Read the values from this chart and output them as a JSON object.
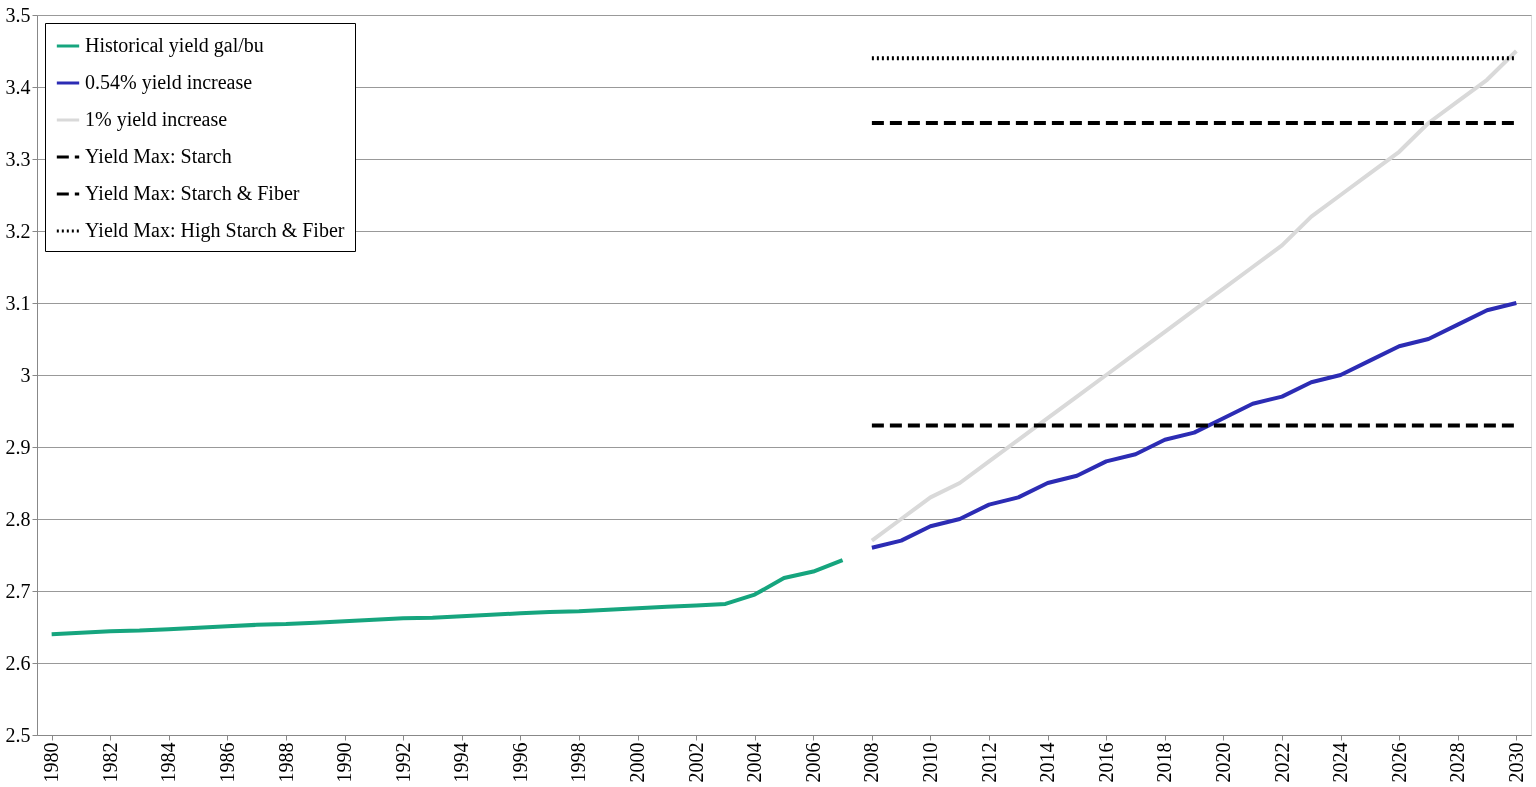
{
  "chart_data": {
    "type": "line",
    "x": [
      1980,
      1981,
      1982,
      1983,
      1984,
      1985,
      1986,
      1987,
      1988,
      1989,
      1990,
      1991,
      1992,
      1993,
      1994,
      1995,
      1996,
      1997,
      1998,
      1999,
      2000,
      2001,
      2002,
      2003,
      2004,
      2005,
      2006,
      2007
    ],
    "series": [
      {
        "name": "Historical yield gal/bu",
        "color": "#16a57e",
        "values": [
          2.64,
          2.642,
          2.644,
          2.645,
          2.647,
          2.649,
          2.651,
          2.653,
          2.654,
          2.656,
          2.658,
          2.66,
          2.662,
          2.663,
          2.665,
          2.667,
          2.669,
          2.671,
          2.672,
          2.674,
          2.676,
          2.678,
          2.68,
          2.682,
          2.695,
          2.718,
          2.727,
          2.743
        ]
      },
      {
        "name": "0.54% yield increase",
        "color": "#2c2cb4",
        "x": [
          2008,
          2009,
          2010,
          2011,
          2012,
          2013,
          2014,
          2015,
          2016,
          2017,
          2018,
          2019,
          2020,
          2021,
          2022,
          2023,
          2024,
          2025,
          2026,
          2027,
          2028,
          2029,
          2030
        ],
        "values": [
          2.76,
          2.77,
          2.79,
          2.8,
          2.82,
          2.83,
          2.85,
          2.86,
          2.88,
          2.89,
          2.91,
          2.92,
          2.94,
          2.96,
          2.97,
          2.99,
          3.0,
          3.02,
          3.04,
          3.05,
          3.07,
          3.09,
          3.1
        ]
      },
      {
        "name": "1% yield increase",
        "color": "#d9d9d9",
        "x": [
          2008,
          2009,
          2010,
          2011,
          2012,
          2013,
          2014,
          2015,
          2016,
          2017,
          2018,
          2019,
          2020,
          2021,
          2022,
          2023,
          2024,
          2025,
          2026,
          2027,
          2028,
          2029,
          2030
        ],
        "values": [
          2.77,
          2.8,
          2.83,
          2.85,
          2.88,
          2.91,
          2.94,
          2.97,
          3.0,
          3.03,
          3.06,
          3.09,
          3.12,
          3.15,
          3.18,
          3.22,
          3.25,
          3.28,
          3.31,
          3.35,
          3.38,
          3.41,
          3.45
        ]
      },
      {
        "name": "Yield Max: Starch",
        "color": "#000000",
        "line_style": "dashed",
        "x": [
          2008,
          2030
        ],
        "values": [
          2.93,
          2.93
        ]
      },
      {
        "name": "Yield Max: Starch & Fiber",
        "color": "#000000",
        "line_style": "dashed",
        "x": [
          2008,
          2030
        ],
        "values": [
          3.35,
          3.35
        ]
      },
      {
        "name": "Yield Max: High Starch & Fiber",
        "color": "#000000",
        "line_style": "dotted",
        "x": [
          2008,
          2030
        ],
        "values": [
          3.44,
          3.44
        ]
      }
    ],
    "xlim": [
      1979.5,
      2030.5
    ],
    "xticks": [
      1980,
      1982,
      1984,
      1986,
      1988,
      1990,
      1992,
      1994,
      1996,
      1998,
      2000,
      2002,
      2004,
      2006,
      2008,
      2010,
      2012,
      2014,
      2016,
      2018,
      2020,
      2022,
      2024,
      2026,
      2028,
      2030
    ],
    "ylim": [
      2.5,
      3.5
    ],
    "yticks": [
      2.5,
      2.6,
      2.7,
      2.8,
      2.9,
      3,
      3.1,
      3.2,
      3.3,
      3.4,
      3.5
    ],
    "grid": "y",
    "legend": "top left",
    "line_style": "solid",
    "marker": "none"
  }
}
